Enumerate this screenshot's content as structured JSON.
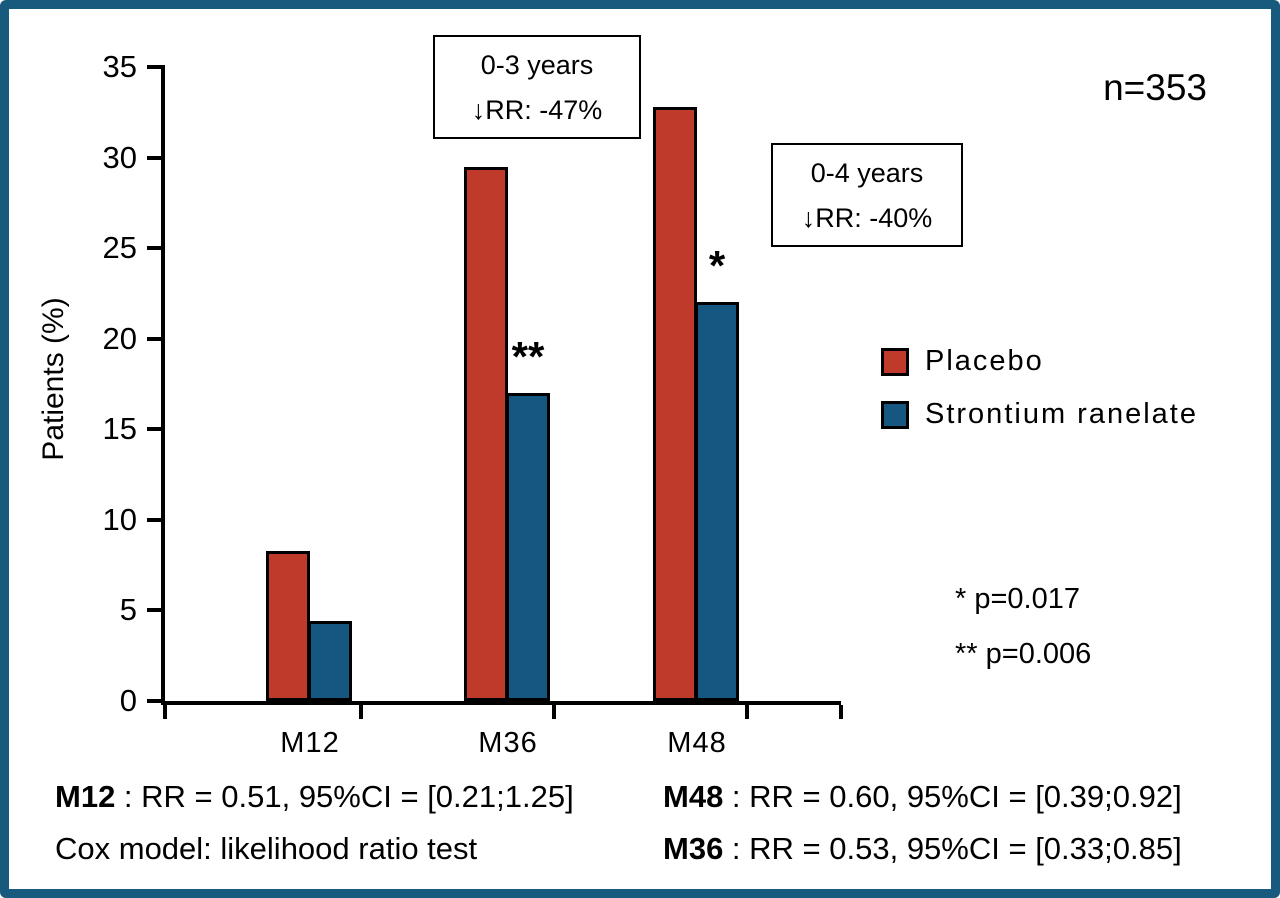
{
  "chart_data": {
    "type": "bar",
    "title": "",
    "xlabel": "",
    "ylabel": "Patients (%)",
    "ylim": [
      0,
      35
    ],
    "yticks": [
      0,
      5,
      10,
      15,
      20,
      25,
      30,
      35
    ],
    "grid": false,
    "legend_position": "right",
    "categories": [
      "M12",
      "M36",
      "M48"
    ],
    "series": [
      {
        "name": "Placebo",
        "color": "#bf3a2b",
        "values": [
          8.3,
          29.5,
          32.8
        ]
      },
      {
        "name": "Strontium ranelate",
        "color": "#155780",
        "values": [
          4.4,
          17.0,
          22.0
        ]
      }
    ],
    "sample_size": "n=353",
    "annotations": [
      {
        "lines": [
          "0-3 years",
          "↓RR: -47%"
        ]
      },
      {
        "lines": [
          "0-4 years",
          "↓RR: -40%"
        ]
      }
    ],
    "significance_markers": [
      {
        "category": "M36",
        "series": "Strontium ranelate",
        "text": "**"
      },
      {
        "category": "M48",
        "series": "Strontium ranelate",
        "text": "*"
      }
    ],
    "pvalue_notes": [
      "* p=0.017",
      "** p=0.006"
    ],
    "footnotes": [
      {
        "bold": "M12",
        "text": " : RR = 0.51, 95%CI = [0.21;1.25]"
      },
      {
        "bold": "",
        "text": "Cox model: likelihood ratio test"
      },
      {
        "bold": "M48",
        "text": " : RR = 0.60, 95%CI = [0.39;0.92]"
      },
      {
        "bold": "M36",
        "text": " : RR = 0.53, 95%CI = [0.33;0.85]"
      }
    ]
  },
  "figure": {
    "border_color": "#175a7d"
  }
}
